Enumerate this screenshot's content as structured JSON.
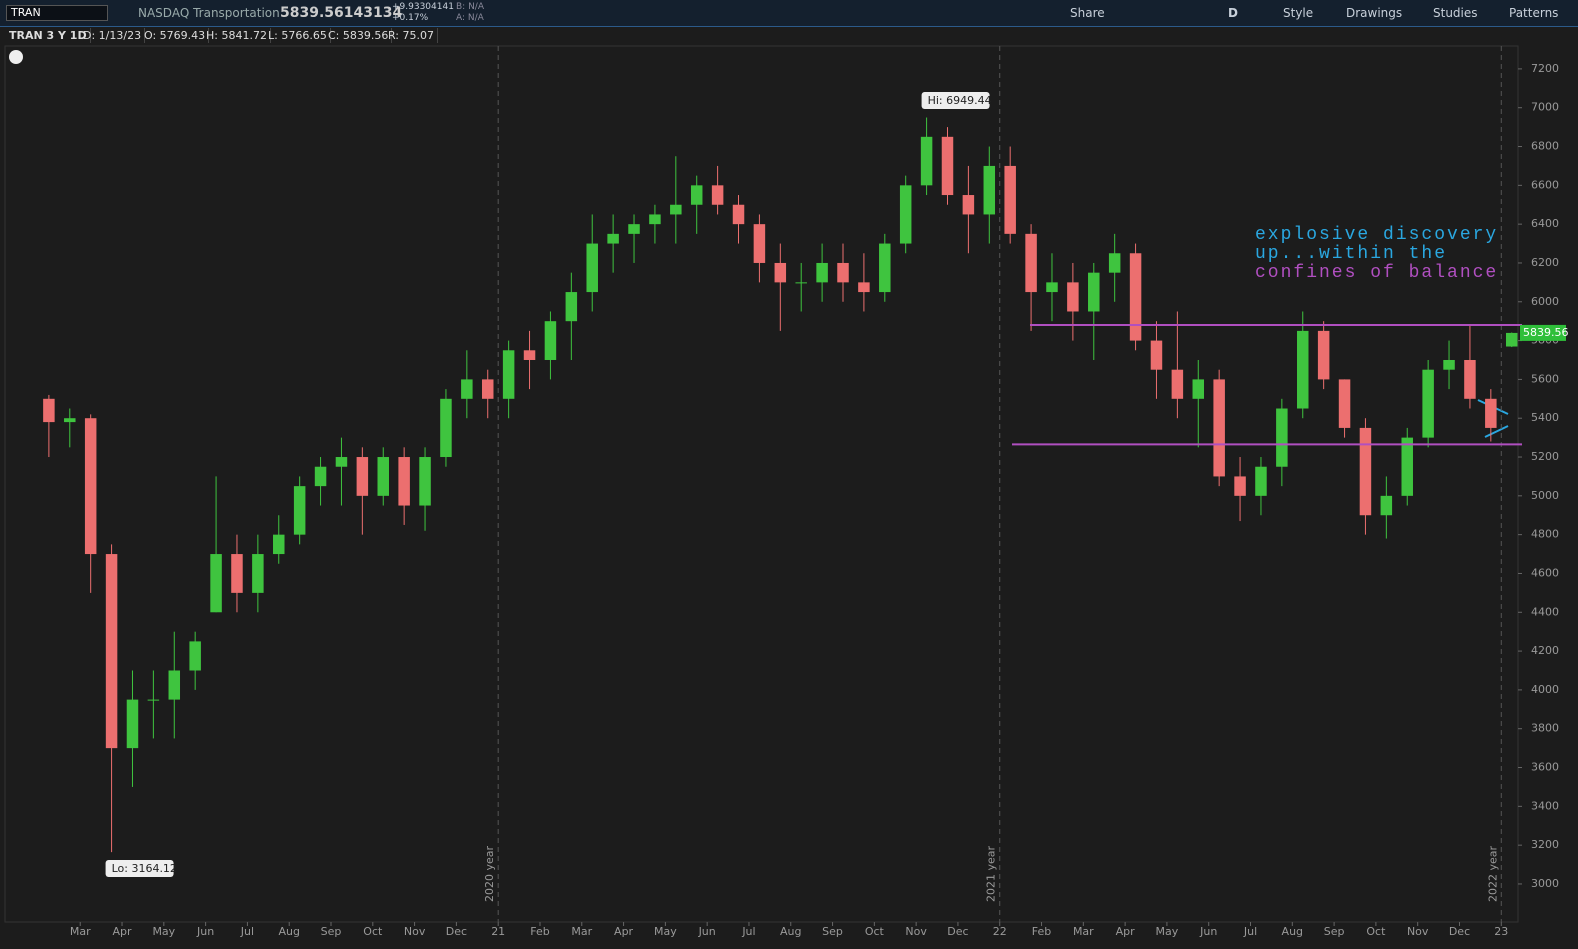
{
  "toolbar": {
    "symbol": "TRAN",
    "description": "NASDAQ Transportation",
    "last": "5839.56143134",
    "change": "+9.93304141",
    "change_pct": "+0.17%",
    "bid": "B: N/A",
    "ask": "A: N/A",
    "buttons": [
      "Share",
      "D",
      "Style",
      "Drawings",
      "Studies",
      "Patterns"
    ]
  },
  "info_bar": [
    "TRAN 3 Y 1D",
    "D: 1/13/23",
    "O: 5769.43",
    "H: 5841.72",
    "L: 5766.65",
    "C: 5839.56",
    "R: 75.07"
  ],
  "chart_data": {
    "type": "candlestick",
    "open": [
      5500,
      5380,
      5400,
      4700,
      3700,
      3950,
      3950,
      4100,
      4400,
      4700,
      4500,
      4700,
      4800,
      5050,
      5150,
      5200,
      5000,
      5200,
      4950,
      5200,
      5500,
      5600,
      5500,
      5750,
      5700,
      5900,
      6050,
      6300,
      6350,
      6400,
      6450,
      6500,
      6600,
      6500,
      6400,
      6200,
      6100,
      6100,
      6200,
      6100,
      6050,
      6300,
      6600,
      6850,
      6550,
      6450,
      6700,
      6350,
      6050,
      6100,
      5950,
      6150,
      6250,
      5800,
      5650,
      5500,
      5600,
      5100,
      5000,
      5150,
      5450,
      5850,
      5600,
      5350,
      4900,
      5000,
      5300,
      5650,
      5700,
      5500,
      5769.43
    ],
    "high": [
      5520,
      5450,
      5420,
      4750,
      4100,
      4100,
      4300,
      4300,
      5100,
      4800,
      4800,
      4900,
      5100,
      5200,
      5300,
      5250,
      5250,
      5250,
      5250,
      5550,
      5750,
      5650,
      5800,
      5850,
      5950,
      6150,
      6450,
      6450,
      6450,
      6500,
      6750,
      6650,
      6700,
      6550,
      6450,
      6300,
      6200,
      6300,
      6300,
      6250,
      6350,
      6650,
      6949.44,
      6900,
      6700,
      6800,
      6800,
      6400,
      6250,
      6200,
      6200,
      6350,
      6300,
      5900,
      5950,
      5700,
      5650,
      5200,
      5200,
      5500,
      5950,
      5900,
      5600,
      5400,
      5100,
      5350,
      5700,
      5800,
      5880,
      5550,
      5841.72
    ],
    "low": [
      5200,
      5250,
      4500,
      3164.12,
      3500,
      3750,
      3750,
      4000,
      4400,
      4400,
      4400,
      4650,
      4750,
      4950,
      4950,
      4800,
      4950,
      4850,
      4820,
      5150,
      5400,
      5400,
      5400,
      5550,
      5600,
      5700,
      5950,
      6150,
      6200,
      6300,
      6300,
      6350,
      6450,
      6300,
      6100,
      5850,
      5950,
      6000,
      6000,
      5950,
      6000,
      6250,
      6550,
      6500,
      6250,
      6300,
      6300,
      5850,
      5900,
      5800,
      5700,
      6000,
      5750,
      5500,
      5400,
      5250,
      5050,
      4870,
      4900,
      5050,
      5400,
      5550,
      5300,
      4800,
      4780,
      4950,
      5250,
      5550,
      5450,
      5280,
      5766.65
    ],
    "close": [
      5380,
      5400,
      4700,
      3700,
      3950,
      3950,
      4100,
      4250,
      4700,
      4500,
      4700,
      4800,
      5050,
      5150,
      5200,
      5000,
      5200,
      4950,
      5200,
      5500,
      5600,
      5500,
      5750,
      5700,
      5900,
      6050,
      6300,
      6350,
      6400,
      6450,
      6500,
      6600,
      6500,
      6400,
      6200,
      6100,
      6100,
      6200,
      6100,
      6050,
      6300,
      6600,
      6850,
      6550,
      6450,
      6700,
      6350,
      6050,
      6100,
      5950,
      6150,
      6250,
      5800,
      5650,
      5500,
      5600,
      5100,
      5000,
      5150,
      5450,
      5850,
      5600,
      5350,
      4900,
      5000,
      5300,
      5650,
      5700,
      5500,
      5350,
      5839.56
    ],
    "up_color": "#3fc43f",
    "down_color": "#ec6f6f",
    "xlim": [
      -2.1,
      70.3
    ],
    "xticks": [
      {
        "value": 1.5,
        "label": "Mar"
      },
      {
        "value": 3.5,
        "label": "Apr"
      },
      {
        "value": 5.5,
        "label": "May"
      },
      {
        "value": 7.5,
        "label": "Jun"
      },
      {
        "value": 9.5,
        "label": "Jul"
      },
      {
        "value": 11.5,
        "label": "Aug"
      },
      {
        "value": 13.5,
        "label": "Sep"
      },
      {
        "value": 15.5,
        "label": "Oct"
      },
      {
        "value": 17.5,
        "label": "Nov"
      },
      {
        "value": 19.5,
        "label": "Dec"
      },
      {
        "value": 21.5,
        "label": "21"
      },
      {
        "value": 23.5,
        "label": "Feb"
      },
      {
        "value": 25.5,
        "label": "Mar"
      },
      {
        "value": 27.5,
        "label": "Apr"
      },
      {
        "value": 29.5,
        "label": "May"
      },
      {
        "value": 31.5,
        "label": "Jun"
      },
      {
        "value": 33.5,
        "label": "Jul"
      },
      {
        "value": 35.5,
        "label": "Aug"
      },
      {
        "value": 37.5,
        "label": "Sep"
      },
      {
        "value": 39.5,
        "label": "Oct"
      },
      {
        "value": 41.5,
        "label": "Nov"
      },
      {
        "value": 43.5,
        "label": "Dec"
      },
      {
        "value": 45.5,
        "label": "22"
      },
      {
        "value": 47.5,
        "label": "Feb"
      },
      {
        "value": 49.5,
        "label": "Mar"
      },
      {
        "value": 51.5,
        "label": "Apr"
      },
      {
        "value": 53.5,
        "label": "May"
      },
      {
        "value": 55.5,
        "label": "Jun"
      },
      {
        "value": 57.5,
        "label": "Jul"
      },
      {
        "value": 59.5,
        "label": "Aug"
      },
      {
        "value": 61.5,
        "label": "Sep"
      },
      {
        "value": 63.5,
        "label": "Oct"
      },
      {
        "value": 65.5,
        "label": "Nov"
      },
      {
        "value": 67.5,
        "label": "Dec"
      },
      {
        "value": 69.5,
        "label": "23"
      }
    ],
    "ylim": [
      2804,
      7318
    ],
    "yticks": [
      3000,
      3200,
      3400,
      3600,
      3800,
      4000,
      4200,
      4400,
      4600,
      4800,
      5000,
      5200,
      5400,
      5600,
      5800,
      6000,
      6200,
      6400,
      6600,
      6800,
      7000,
      7200
    ],
    "separators": [
      {
        "value": 21.5,
        "label": "2020 year"
      },
      {
        "value": 45.5,
        "label": "2021 year"
      },
      {
        "value": 69.5,
        "label": "2022 year"
      }
    ],
    "hlines": [
      {
        "value": 5880,
        "color": "#b04fc0"
      },
      {
        "value": 5265,
        "color": "#b04fc0"
      }
    ],
    "hi_label": "Hi: 6949.44",
    "lo_label": "Lo: 3164.12",
    "price_tag": "5839.56",
    "annotation": [
      {
        "text": "explosive discovery",
        "color": "#2aa7e0"
      },
      {
        "text": "up...within the",
        "color": "#2aa7e0"
      },
      {
        "text": "confines of balance",
        "color": "#b04fc0"
      }
    ]
  }
}
